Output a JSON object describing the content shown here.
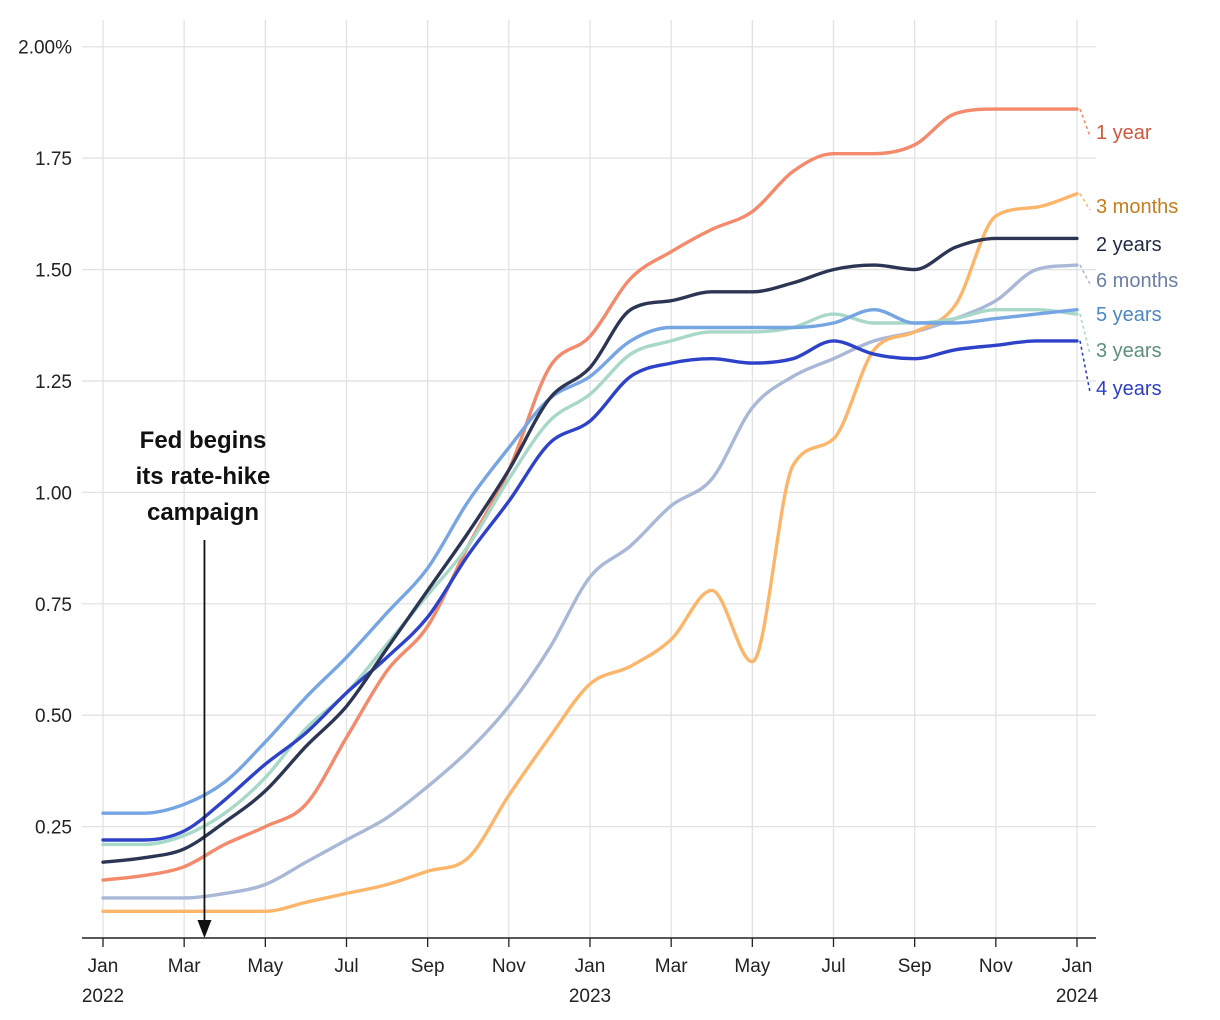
{
  "chart_data": {
    "type": "line",
    "title": "",
    "xlabel": "",
    "ylabel": "",
    "x_range": [
      "2022-01",
      "2024-01"
    ],
    "ylim": [
      0,
      2.06
    ],
    "y_ticks": [
      {
        "value": 0.25,
        "label": "0.25"
      },
      {
        "value": 0.5,
        "label": "0.50"
      },
      {
        "value": 0.75,
        "label": "0.75"
      },
      {
        "value": 1.0,
        "label": "1.00"
      },
      {
        "value": 1.25,
        "label": "1.25"
      },
      {
        "value": 1.5,
        "label": "1.50"
      },
      {
        "value": 1.75,
        "label": "1.75"
      },
      {
        "value": 2.0,
        "label": "2.00%"
      }
    ],
    "x_ticks": [
      {
        "date": "2022-01",
        "label": "Jan",
        "sublabel": "2022"
      },
      {
        "date": "2022-03",
        "label": "Mar",
        "sublabel": ""
      },
      {
        "date": "2022-05",
        "label": "May",
        "sublabel": ""
      },
      {
        "date": "2022-07",
        "label": "Jul",
        "sublabel": ""
      },
      {
        "date": "2022-09",
        "label": "Sep",
        "sublabel": ""
      },
      {
        "date": "2022-11",
        "label": "Nov",
        "sublabel": ""
      },
      {
        "date": "2023-01",
        "label": "Jan",
        "sublabel": "2023"
      },
      {
        "date": "2023-03",
        "label": "Mar",
        "sublabel": ""
      },
      {
        "date": "2023-05",
        "label": "May",
        "sublabel": ""
      },
      {
        "date": "2023-07",
        "label": "Jul",
        "sublabel": ""
      },
      {
        "date": "2023-09",
        "label": "Sep",
        "sublabel": ""
      },
      {
        "date": "2023-11",
        "label": "Nov",
        "sublabel": ""
      },
      {
        "date": "2024-01",
        "label": "Jan",
        "sublabel": "2024"
      }
    ],
    "grid": "both",
    "annotation": {
      "lines": [
        "Fed begins",
        "its rate-hike",
        "campaign"
      ],
      "date": "2022-03-16"
    },
    "series": [
      {
        "name": "1 year",
        "line_color": "#f4896b",
        "label_color": "#d0573b",
        "x": [
          "2022-01",
          "2022-02",
          "2022-03",
          "2022-04",
          "2022-05",
          "2022-06",
          "2022-07",
          "2022-08",
          "2022-09",
          "2022-10",
          "2022-11",
          "2022-12",
          "2023-01",
          "2023-02",
          "2023-03",
          "2023-04",
          "2023-05",
          "2023-06",
          "2023-07",
          "2023-08",
          "2023-09",
          "2023-10",
          "2023-11",
          "2023-12",
          "2024-01"
        ],
        "values": [
          0.13,
          0.14,
          0.16,
          0.21,
          0.25,
          0.3,
          0.45,
          0.6,
          0.7,
          0.88,
          1.05,
          1.28,
          1.35,
          1.48,
          1.54,
          1.59,
          1.63,
          1.72,
          1.76,
          1.76,
          1.78,
          1.85,
          1.86,
          1.86,
          1.86
        ]
      },
      {
        "name": "3 months",
        "line_color": "#fdb56a",
        "label_color": "#c57c1c",
        "x": [
          "2022-01",
          "2022-02",
          "2022-03",
          "2022-04",
          "2022-05",
          "2022-06",
          "2022-07",
          "2022-08",
          "2022-09",
          "2022-10",
          "2022-11",
          "2022-12",
          "2023-01",
          "2023-02",
          "2023-03",
          "2023-04",
          "2023-05",
          "2023-06",
          "2023-07",
          "2023-08",
          "2023-09",
          "2023-10",
          "2023-11",
          "2023-12",
          "2024-01"
        ],
        "values": [
          0.06,
          0.06,
          0.06,
          0.06,
          0.06,
          0.08,
          0.1,
          0.12,
          0.15,
          0.18,
          0.32,
          0.45,
          0.57,
          0.61,
          0.67,
          0.78,
          0.62,
          1.06,
          1.12,
          1.32,
          1.36,
          1.42,
          1.62,
          1.64,
          1.67
        ]
      },
      {
        "name": "2 years",
        "line_color": "#2c3654",
        "label_color": "#1f2a44",
        "x": [
          "2022-01",
          "2022-02",
          "2022-03",
          "2022-04",
          "2022-05",
          "2022-06",
          "2022-07",
          "2022-08",
          "2022-09",
          "2022-10",
          "2022-11",
          "2022-12",
          "2023-01",
          "2023-02",
          "2023-03",
          "2023-04",
          "2023-05",
          "2023-06",
          "2023-07",
          "2023-08",
          "2023-09",
          "2023-10",
          "2023-11",
          "2023-12",
          "2024-01"
        ],
        "values": [
          0.17,
          0.18,
          0.2,
          0.26,
          0.33,
          0.43,
          0.52,
          0.65,
          0.78,
          0.91,
          1.05,
          1.21,
          1.28,
          1.41,
          1.43,
          1.45,
          1.45,
          1.47,
          1.5,
          1.51,
          1.5,
          1.55,
          1.57,
          1.57,
          1.57
        ]
      },
      {
        "name": "6 months",
        "line_color": "#a9b8d6",
        "label_color": "#6b7fa6",
        "x": [
          "2022-01",
          "2022-02",
          "2022-03",
          "2022-04",
          "2022-05",
          "2022-06",
          "2022-07",
          "2022-08",
          "2022-09",
          "2022-10",
          "2022-11",
          "2022-12",
          "2023-01",
          "2023-02",
          "2023-03",
          "2023-04",
          "2023-05",
          "2023-06",
          "2023-07",
          "2023-08",
          "2023-09",
          "2023-10",
          "2023-11",
          "2023-12",
          "2024-01"
        ],
        "values": [
          0.09,
          0.09,
          0.09,
          0.1,
          0.12,
          0.17,
          0.22,
          0.27,
          0.34,
          0.42,
          0.52,
          0.65,
          0.81,
          0.88,
          0.97,
          1.03,
          1.19,
          1.26,
          1.3,
          1.34,
          1.36,
          1.39,
          1.43,
          1.5,
          1.51
        ]
      },
      {
        "name": "5 years",
        "line_color": "#76a5e3",
        "label_color": "#4c86c4",
        "x": [
          "2022-01",
          "2022-02",
          "2022-03",
          "2022-04",
          "2022-05",
          "2022-06",
          "2022-07",
          "2022-08",
          "2022-09",
          "2022-10",
          "2022-11",
          "2022-12",
          "2023-01",
          "2023-02",
          "2023-03",
          "2023-04",
          "2023-05",
          "2023-06",
          "2023-07",
          "2023-08",
          "2023-09",
          "2023-10",
          "2023-11",
          "2023-12",
          "2024-01"
        ],
        "values": [
          0.28,
          0.28,
          0.3,
          0.35,
          0.44,
          0.54,
          0.63,
          0.73,
          0.83,
          0.98,
          1.1,
          1.21,
          1.26,
          1.34,
          1.37,
          1.37,
          1.37,
          1.37,
          1.38,
          1.41,
          1.38,
          1.38,
          1.39,
          1.4,
          1.41
        ]
      },
      {
        "name": "3 years",
        "line_color": "#a8d8c8",
        "label_color": "#5e8e7c",
        "x": [
          "2022-01",
          "2022-02",
          "2022-03",
          "2022-04",
          "2022-05",
          "2022-06",
          "2022-07",
          "2022-08",
          "2022-09",
          "2022-10",
          "2022-11",
          "2022-12",
          "2023-01",
          "2023-02",
          "2023-03",
          "2023-04",
          "2023-05",
          "2023-06",
          "2023-07",
          "2023-08",
          "2023-09",
          "2023-10",
          "2023-11",
          "2023-12",
          "2024-01"
        ],
        "values": [
          0.21,
          0.21,
          0.23,
          0.28,
          0.36,
          0.47,
          0.55,
          0.66,
          0.77,
          0.88,
          1.03,
          1.16,
          1.22,
          1.31,
          1.34,
          1.36,
          1.36,
          1.37,
          1.4,
          1.38,
          1.38,
          1.39,
          1.41,
          1.41,
          1.4
        ]
      },
      {
        "name": "4 years",
        "line_color": "#2e42c9",
        "label_color": "#2c3fc4",
        "x": [
          "2022-01",
          "2022-02",
          "2022-03",
          "2022-04",
          "2022-05",
          "2022-06",
          "2022-07",
          "2022-08",
          "2022-09",
          "2022-10",
          "2022-11",
          "2022-12",
          "2023-01",
          "2023-02",
          "2023-03",
          "2023-04",
          "2023-05",
          "2023-06",
          "2023-07",
          "2023-08",
          "2023-09",
          "2023-10",
          "2023-11",
          "2023-12",
          "2024-01"
        ],
        "values": [
          0.22,
          0.22,
          0.24,
          0.31,
          0.39,
          0.46,
          0.55,
          0.63,
          0.72,
          0.86,
          0.98,
          1.11,
          1.16,
          1.26,
          1.29,
          1.3,
          1.29,
          1.3,
          1.34,
          1.31,
          1.3,
          1.32,
          1.33,
          1.34,
          1.34
        ]
      }
    ]
  }
}
